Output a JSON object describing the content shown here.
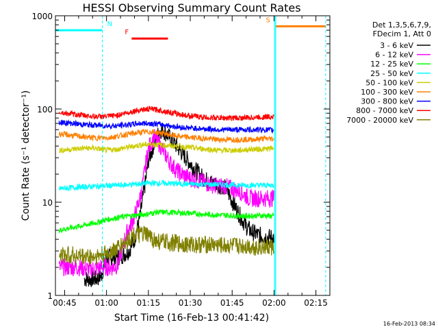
{
  "chart_data": {
    "type": "line",
    "title": "HESSI Observing Summary Count Rates",
    "xlabel": "Start Time (16-Feb-13 00:41:42)",
    "ylabel": "Count Rate (s⁻¹ detector⁻¹)",
    "yscale": "log",
    "ylim": [
      1,
      1000
    ],
    "xlim": [
      41.7,
      140
    ],
    "x_unit": "minutes after 00:00 UT",
    "y_ticks": [
      "1",
      "10",
      "100",
      "1000"
    ],
    "y_tick_values": [
      1,
      10,
      100,
      1000
    ],
    "x_ticks": [
      "00:45",
      "01:00",
      "01:15",
      "01:30",
      "01:45",
      "02:00",
      "02:15"
    ],
    "x_tick_values": [
      45,
      60,
      75,
      90,
      105,
      120,
      135
    ],
    "legend_header": [
      "Det 1,3,5,6,7,9,",
      "FDecim 1, Att 0"
    ],
    "legend_placement": "outside-right",
    "series": [
      {
        "name": "3 - 6 keV",
        "color": "#000000",
        "x": [
          52,
          56,
          58,
          60,
          62,
          65,
          68,
          70,
          72,
          73,
          74,
          75,
          77,
          79,
          80,
          82,
          84,
          86,
          88,
          90,
          92,
          94,
          96,
          98,
          100,
          102,
          104,
          106,
          108,
          110,
          112,
          114,
          116,
          118,
          120
        ],
        "y": [
          1.5,
          1.5,
          1.6,
          2.5,
          2.6,
          2.6,
          3.0,
          4,
          7,
          11,
          17,
          28,
          42,
          58,
          60,
          52,
          44,
          37,
          31,
          26,
          22,
          19,
          17,
          16,
          15,
          15,
          12,
          9,
          7,
          5.5,
          4.8,
          4.5,
          4.3,
          4.2,
          4.2
        ]
      },
      {
        "name": "6 - 12 keV",
        "color": "#ff00ff",
        "x": [
          43,
          46,
          50,
          54,
          58,
          62,
          64,
          67,
          70,
          72,
          73,
          74,
          75,
          77,
          79,
          81,
          83,
          85,
          87,
          90,
          93,
          96,
          99,
          102,
          105,
          108,
          111,
          114,
          118,
          120
        ],
        "y": [
          2.0,
          2.0,
          2.0,
          1.9,
          2.0,
          2.0,
          2.1,
          4.5,
          7.0,
          11,
          16,
          25,
          38,
          50,
          42,
          33,
          26,
          22,
          20,
          18,
          17,
          16,
          15,
          15,
          14,
          13,
          11,
          11,
          11,
          11
        ]
      },
      {
        "name": "12 - 25 keV",
        "color": "#00ff00",
        "x": [
          43,
          50,
          56,
          60,
          66,
          70,
          75,
          78,
          82,
          86,
          90,
          95,
          100,
          105,
          110,
          115,
          120
        ],
        "y": [
          5.0,
          5.5,
          6.0,
          6.5,
          7.0,
          7.2,
          7.5,
          7.8,
          7.8,
          7.7,
          7.6,
          7.4,
          7.3,
          7.2,
          7.1,
          7.2,
          7.1
        ]
      },
      {
        "name": "25 - 50 keV",
        "color": "#00ffff",
        "x": [
          43,
          50,
          56,
          60,
          66,
          70,
          75,
          80,
          85,
          90,
          95,
          100,
          105,
          110,
          115,
          120
        ],
        "y": [
          14,
          14.5,
          14.8,
          15,
          15.3,
          15.6,
          16,
          16,
          15.8,
          15.6,
          15.5,
          15.5,
          15.3,
          15.2,
          15.2,
          15.2
        ]
      },
      {
        "name": "50 - 100 keV",
        "color": "#cccc00",
        "x": [
          43,
          48,
          52,
          56,
          60,
          64,
          68,
          72,
          76,
          80,
          84,
          88,
          92,
          96,
          100,
          104,
          108,
          112,
          116,
          120
        ],
        "y": [
          36,
          37,
          38,
          38,
          36,
          37,
          39,
          41,
          42,
          41,
          40,
          39,
          38,
          37,
          36,
          36,
          36,
          37,
          37,
          38
        ]
      },
      {
        "name": "100 - 300 keV",
        "color": "#ff8000",
        "x": [
          43,
          48,
          52,
          56,
          60,
          64,
          68,
          72,
          76,
          80,
          84,
          88,
          92,
          96,
          100,
          104,
          108,
          112,
          116,
          120
        ],
        "y": [
          54,
          52,
          50,
          49,
          49,
          51,
          54,
          56,
          57,
          55,
          52,
          50,
          49,
          48,
          47,
          47,
          47,
          47,
          48,
          48
        ]
      },
      {
        "name": "300 - 800 keV",
        "color": "#0000ff",
        "x": [
          43,
          48,
          52,
          56,
          60,
          64,
          68,
          72,
          76,
          80,
          84,
          88,
          92,
          96,
          100,
          104,
          108,
          112,
          116,
          120
        ],
        "y": [
          72,
          70,
          68,
          67,
          66,
          66,
          68,
          70,
          70,
          68,
          65,
          63,
          62,
          61,
          60,
          60,
          60,
          60,
          60,
          59
        ]
      },
      {
        "name": "800 - 7000 keV",
        "color": "#ff0000",
        "x": [
          43,
          48,
          52,
          56,
          60,
          64,
          68,
          72,
          76,
          80,
          84,
          88,
          92,
          96,
          100,
          104,
          108,
          112,
          116,
          120
        ],
        "y": [
          92,
          88,
          85,
          83,
          83,
          86,
          92,
          98,
          100,
          96,
          90,
          86,
          83,
          81,
          80,
          80,
          80,
          81,
          82,
          83
        ]
      },
      {
        "name": "7000 - 20000 keV",
        "color": "#808000",
        "x": [
          43,
          48,
          52,
          56,
          60,
          64,
          68,
          70,
          74,
          78,
          82,
          86,
          90,
          94,
          98,
          102,
          106,
          110,
          114,
          118,
          120
        ],
        "y": [
          2.7,
          2.7,
          2.6,
          2.6,
          2.8,
          3.2,
          4.0,
          4.5,
          4.5,
          3.8,
          3.7,
          3.6,
          3.5,
          3.5,
          3.5,
          3.4,
          3.4,
          3.4,
          3.3,
          3.3,
          3.3
        ]
      }
    ],
    "annotations": [
      {
        "label": "N",
        "color": "#00ffff",
        "x_start": 41.7,
        "x_end": 58.5,
        "level": 700
      },
      {
        "label": "F",
        "color": "#ff0000",
        "x_start": 69,
        "x_end": 82,
        "level": 570
      },
      {
        "label": "S",
        "color": "#ff8000",
        "x_start": 120.5,
        "x_end": 138.5,
        "level": 770
      }
    ],
    "saa_markers": {
      "color": "#00ffff",
      "x": [
        58.5,
        138.5
      ]
    },
    "night_band": {
      "color": "#00ffff",
      "x": [
        120.2,
        120.6
      ]
    }
  },
  "footer_date": "16-Feb-2013 08:34"
}
